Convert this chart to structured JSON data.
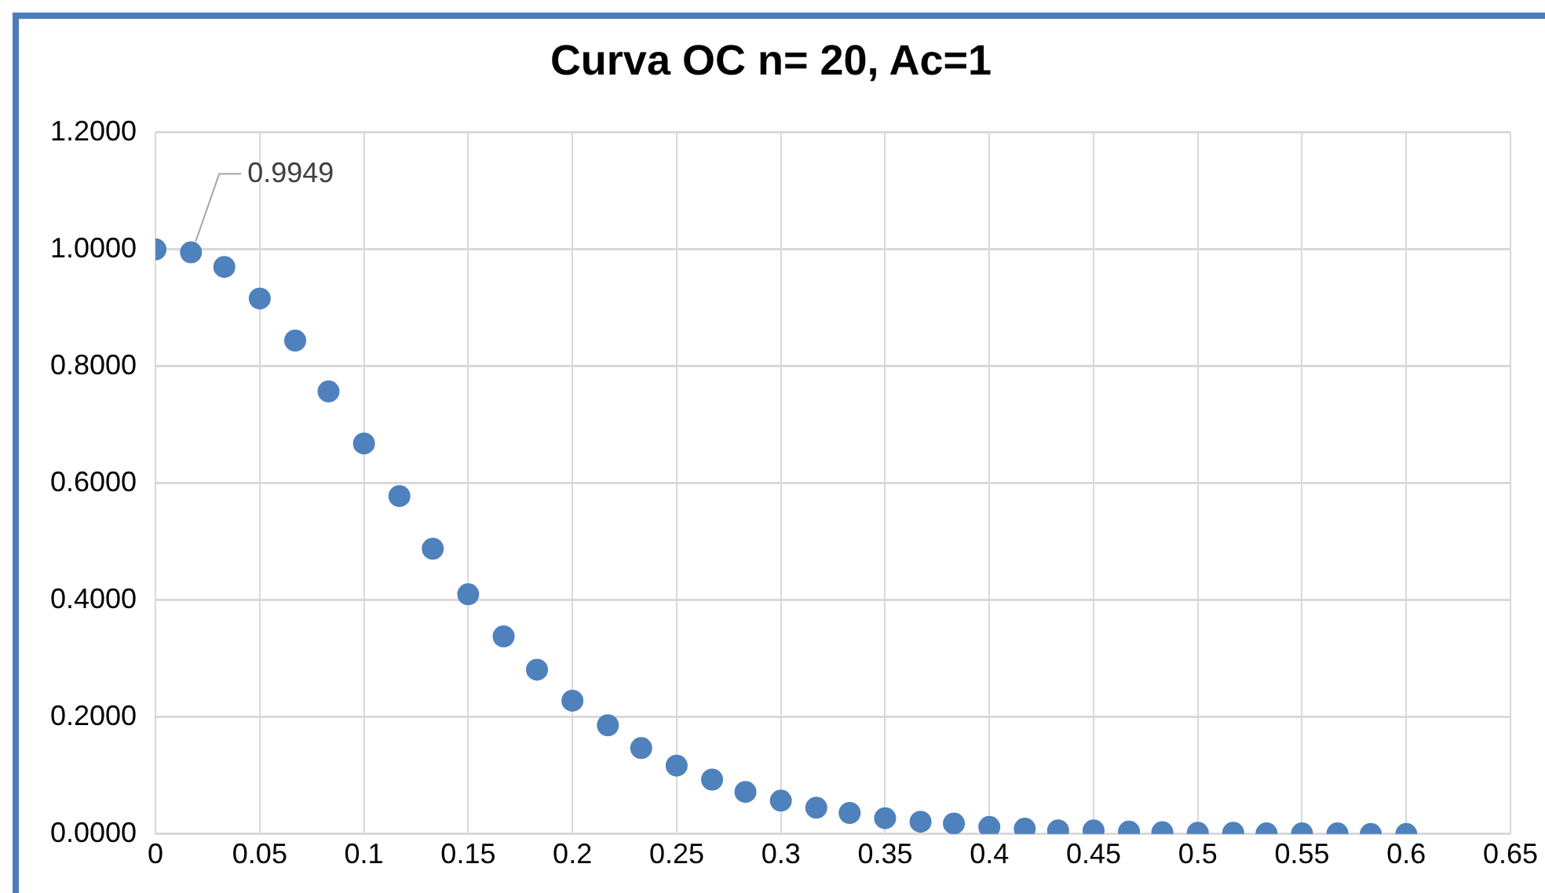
{
  "chart_data": {
    "type": "scatter",
    "title": "Curva OC n= 20, Ac=1",
    "x": [
      0,
      0.017,
      0.033,
      0.05,
      0.067,
      0.083,
      0.1,
      0.117,
      0.133,
      0.15,
      0.167,
      0.183,
      0.2,
      0.217,
      0.233,
      0.25,
      0.267,
      0.283,
      0.3,
      0.317,
      0.333,
      0.35,
      0.367,
      0.383,
      0.4,
      0.417,
      0.433,
      0.45,
      0.467,
      0.483,
      0.5,
      0.517,
      0.533,
      0.55,
      0.567,
      0.583,
      0.6
    ],
    "series": [
      {
        "color": "#4f81bd",
        "values": [
          1.0,
          0.9949,
          0.97,
          0.916,
          0.844,
          0.757,
          0.668,
          0.578,
          0.488,
          0.41,
          0.338,
          0.281,
          0.228,
          0.186,
          0.147,
          0.117,
          0.093,
          0.072,
          0.057,
          0.045,
          0.036,
          0.027,
          0.021,
          0.018,
          0.012,
          0.009,
          0.006,
          0.006,
          0.004,
          0.003,
          0.002,
          0.002,
          0.001,
          0.001,
          0.001,
          0.0,
          0.0
        ]
      }
    ],
    "xlim": [
      0,
      0.65
    ],
    "xticks": [
      0,
      0.05,
      0.1,
      0.15,
      0.2,
      0.25,
      0.3,
      0.35,
      0.4,
      0.45,
      0.5,
      0.55,
      0.6,
      0.65
    ],
    "ylim": [
      0,
      1.2
    ],
    "yticks": [
      {
        "value": 0,
        "label": "0.0000"
      },
      {
        "value": 0.2,
        "label": "0.2000"
      },
      {
        "value": 0.4,
        "label": "0.4000"
      },
      {
        "value": 0.6,
        "label": "0.6000"
      },
      {
        "value": 0.8,
        "label": "0.8000"
      },
      {
        "value": 1.0,
        "label": "1.0000"
      },
      {
        "value": 1.2,
        "label": "1.2000"
      }
    ],
    "annotations": [
      {
        "text": "0.9949",
        "x": 0.017,
        "y": 0.9949
      }
    ],
    "grid": true,
    "legend": false,
    "marker": "circle"
  }
}
